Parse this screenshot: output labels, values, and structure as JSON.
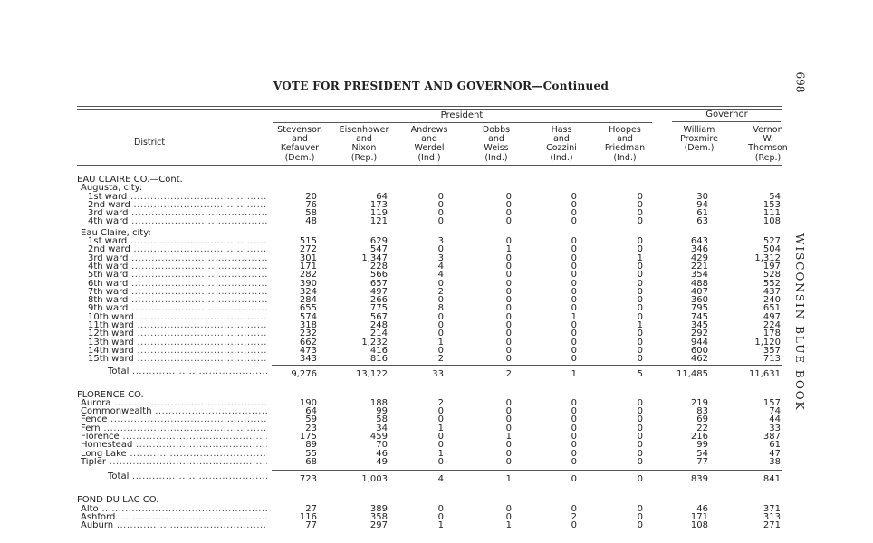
{
  "page": {
    "title": "VOTE FOR PRESIDENT AND GOVERNOR—Continued",
    "page_number": "698",
    "side_header": "WISCONSIN BLUE BOOK"
  },
  "table": {
    "district_header": "District",
    "group_president": "President",
    "group_governor": "Governor",
    "columns": [
      {
        "lines": [
          "Stevenson",
          "and",
          "Kefauver",
          "(Dem.)"
        ]
      },
      {
        "lines": [
          "Eisenhower",
          "and",
          "Nixon",
          "(Rep.)"
        ]
      },
      {
        "lines": [
          "Andrews",
          "and",
          "Werdel",
          "(Ind.)"
        ]
      },
      {
        "lines": [
          "Dobbs",
          "and",
          "Weiss",
          "(Ind.)"
        ]
      },
      {
        "lines": [
          "Hass",
          "and",
          "Cozzini",
          "(Ind.)"
        ]
      },
      {
        "lines": [
          "Hoopes",
          "and",
          "Friedman",
          "(Ind.)"
        ]
      },
      {
        "lines": [
          "",
          "William",
          "Proxmire",
          "(Dem.)"
        ]
      },
      {
        "lines": [
          "Vernon",
          "W.",
          "Thomson",
          "(Rep.)"
        ]
      }
    ],
    "rows": [
      {
        "type": "county",
        "label": "EAU CLAIRE CO.—Cont."
      },
      {
        "type": "sub",
        "label": "Augusta, city:"
      },
      {
        "type": "data",
        "label": "1st ward",
        "values": [
          "20",
          "64",
          "0",
          "0",
          "0",
          "0",
          "30",
          "54"
        ]
      },
      {
        "type": "data",
        "label": "2nd ward",
        "values": [
          "76",
          "173",
          "0",
          "0",
          "0",
          "0",
          "94",
          "153"
        ]
      },
      {
        "type": "data",
        "label": "3rd ward",
        "values": [
          "58",
          "119",
          "0",
          "0",
          "0",
          "0",
          "61",
          "111"
        ]
      },
      {
        "type": "data",
        "label": "4th ward",
        "values": [
          "48",
          "121",
          "0",
          "0",
          "0",
          "0",
          "63",
          "108"
        ]
      },
      {
        "type": "sub",
        "label": "Eau Claire, city:",
        "gap": true
      },
      {
        "type": "data",
        "label": "1st ward",
        "values": [
          "515",
          "629",
          "3",
          "0",
          "0",
          "0",
          "643",
          "527"
        ]
      },
      {
        "type": "data",
        "label": "2nd ward",
        "values": [
          "272",
          "547",
          "0",
          "1",
          "0",
          "0",
          "346",
          "504"
        ]
      },
      {
        "type": "data",
        "label": "3rd ward",
        "values": [
          "301",
          "1,347",
          "3",
          "0",
          "0",
          "1",
          "429",
          "1,312"
        ]
      },
      {
        "type": "data",
        "label": "4th ward",
        "values": [
          "171",
          "228",
          "4",
          "0",
          "0",
          "0",
          "221",
          "197"
        ]
      },
      {
        "type": "data",
        "label": "5th ward",
        "values": [
          "282",
          "566",
          "4",
          "0",
          "0",
          "0",
          "354",
          "528"
        ]
      },
      {
        "type": "data",
        "label": "6th ward",
        "values": [
          "390",
          "657",
          "0",
          "0",
          "0",
          "0",
          "488",
          "552"
        ]
      },
      {
        "type": "data",
        "label": "7th ward",
        "values": [
          "324",
          "497",
          "2",
          "0",
          "0",
          "0",
          "407",
          "437"
        ]
      },
      {
        "type": "data",
        "label": "8th ward",
        "values": [
          "284",
          "266",
          "0",
          "0",
          "0",
          "0",
          "360",
          "240"
        ]
      },
      {
        "type": "data",
        "label": "9th ward",
        "values": [
          "655",
          "775",
          "8",
          "0",
          "0",
          "0",
          "795",
          "651"
        ]
      },
      {
        "type": "data",
        "label": "10th ward",
        "values": [
          "574",
          "567",
          "0",
          "0",
          "1",
          "0",
          "745",
          "497"
        ]
      },
      {
        "type": "data",
        "label": "11th ward",
        "values": [
          "318",
          "248",
          "0",
          "0",
          "0",
          "1",
          "345",
          "224"
        ]
      },
      {
        "type": "data",
        "label": "12th ward",
        "values": [
          "232",
          "214",
          "0",
          "0",
          "0",
          "0",
          "292",
          "178"
        ]
      },
      {
        "type": "data",
        "label": "13th ward",
        "values": [
          "662",
          "1,232",
          "1",
          "0",
          "0",
          "0",
          "944",
          "1,120"
        ]
      },
      {
        "type": "data",
        "label": "14th ward",
        "values": [
          "473",
          "416",
          "0",
          "0",
          "0",
          "0",
          "600",
          "357"
        ]
      },
      {
        "type": "data",
        "label": "15th ward",
        "values": [
          "343",
          "816",
          "2",
          "0",
          "0",
          "0",
          "462",
          "713"
        ]
      },
      {
        "type": "total",
        "label": "Total",
        "values": [
          "9,276",
          "13,122",
          "33",
          "2",
          "1",
          "5",
          "11,485",
          "11,631"
        ]
      },
      {
        "type": "county",
        "label": "FLORENCE CO.",
        "gap": "big"
      },
      {
        "type": "data1",
        "label": "Aurora",
        "values": [
          "190",
          "188",
          "2",
          "0",
          "0",
          "0",
          "219",
          "157"
        ]
      },
      {
        "type": "data1",
        "label": "Commonwealth",
        "values": [
          "64",
          "99",
          "0",
          "0",
          "0",
          "0",
          "83",
          "74"
        ]
      },
      {
        "type": "data1",
        "label": "Fence",
        "values": [
          "59",
          "58",
          "0",
          "0",
          "0",
          "0",
          "69",
          "44"
        ]
      },
      {
        "type": "data1",
        "label": "Fern",
        "values": [
          "23",
          "34",
          "1",
          "0",
          "0",
          "0",
          "22",
          "33"
        ]
      },
      {
        "type": "data1",
        "label": "Florence",
        "values": [
          "175",
          "459",
          "0",
          "1",
          "0",
          "0",
          "216",
          "387"
        ]
      },
      {
        "type": "data1",
        "label": "Homestead",
        "values": [
          "89",
          "70",
          "0",
          "0",
          "0",
          "0",
          "99",
          "61"
        ]
      },
      {
        "type": "data1",
        "label": "Long Lake",
        "values": [
          "55",
          "46",
          "1",
          "0",
          "0",
          "0",
          "54",
          "47"
        ]
      },
      {
        "type": "data1",
        "label": "Tipler",
        "values": [
          "68",
          "49",
          "0",
          "0",
          "0",
          "0",
          "77",
          "38"
        ]
      },
      {
        "type": "total",
        "label": "Total",
        "values": [
          "723",
          "1,003",
          "4",
          "1",
          "0",
          "0",
          "839",
          "841"
        ],
        "gap": true
      },
      {
        "type": "county",
        "label": "FOND DU LAC CO.",
        "gap": "big"
      },
      {
        "type": "data1",
        "label": "Alto",
        "values": [
          "27",
          "389",
          "0",
          "0",
          "0",
          "0",
          "46",
          "371"
        ]
      },
      {
        "type": "data1",
        "label": "Ashford",
        "values": [
          "116",
          "358",
          "0",
          "0",
          "2",
          "0",
          "171",
          "313"
        ]
      },
      {
        "type": "data1",
        "label": "Auburn",
        "values": [
          "77",
          "297",
          "1",
          "1",
          "0",
          "0",
          "108",
          "271"
        ]
      }
    ]
  }
}
